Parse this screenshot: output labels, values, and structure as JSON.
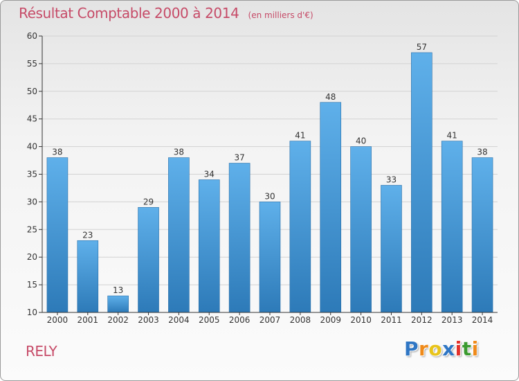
{
  "header": {
    "title": "Résultat Comptable 2000 à 2014",
    "subtitle": "(en milliers d'€)"
  },
  "footer": {
    "place": "RELY",
    "logo_text": "Proxiti",
    "logo_letter_colors": [
      "#2f76c4",
      "#ef8a1a",
      "#e8c41a",
      "#2f76c4",
      "#e3322b",
      "#3a9a2e",
      "#ef8a1a"
    ]
  },
  "colors": {
    "bar_top": "#5fb0ea",
    "bar_bottom": "#2d7ab8",
    "bar_stroke": "#2a6fa8",
    "title": "#c64a67",
    "axis": "#333333",
    "grid": "#d2d2d2"
  },
  "chart_data": {
    "type": "bar",
    "title": "Résultat Comptable 2000 à 2014",
    "subtitle": "(en milliers d'€)",
    "xlabel": "",
    "ylabel": "",
    "categories": [
      "2000",
      "2001",
      "2002",
      "2003",
      "2004",
      "2005",
      "2006",
      "2007",
      "2008",
      "2009",
      "2010",
      "2011",
      "2012",
      "2013",
      "2014"
    ],
    "values": [
      38,
      23,
      13,
      29,
      38,
      34,
      37,
      30,
      41,
      48,
      40,
      33,
      57,
      41,
      38
    ],
    "ylim": [
      10,
      60
    ],
    "yticks": [
      10,
      15,
      20,
      25,
      30,
      35,
      40,
      45,
      50,
      55,
      60
    ],
    "grid": true,
    "data_labels": true
  }
}
